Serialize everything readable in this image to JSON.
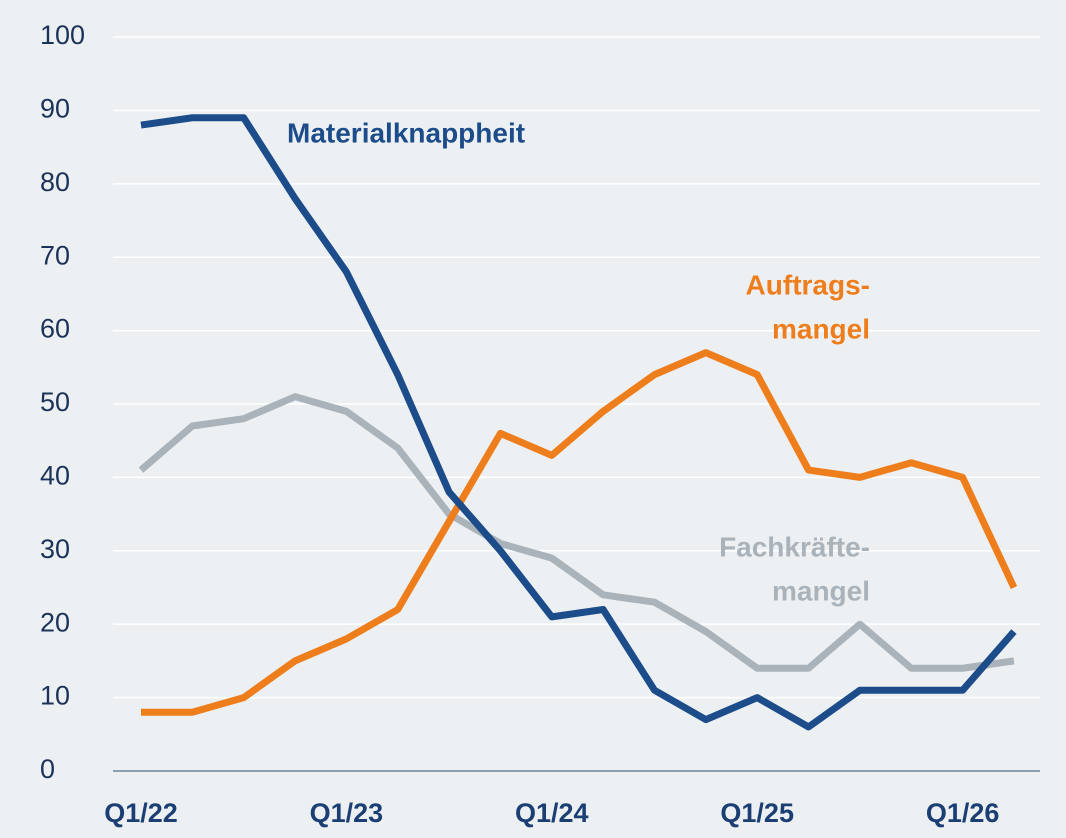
{
  "chart_data": {
    "type": "line",
    "categories": [
      "Q1/22",
      null,
      null,
      null,
      "Q1/23",
      null,
      null,
      null,
      "Q1/24",
      null,
      null,
      null,
      "Q1/25",
      null,
      null,
      null,
      "Q1/26",
      null
    ],
    "series": [
      {
        "name": [
          "Materialknappheit"
        ],
        "color": "#1d4c8a",
        "values": [
          88,
          89,
          89,
          78,
          68,
          54,
          38,
          30,
          21,
          22,
          11,
          7,
          10,
          6,
          11,
          11,
          11,
          19
        ]
      },
      {
        "name": [
          "Auftrags-",
          "mangel"
        ],
        "color": "#ee7d1c",
        "values": [
          8,
          8,
          10,
          15,
          18,
          22,
          34,
          46,
          43,
          49,
          54,
          57,
          54,
          41,
          40,
          42,
          40,
          25
        ]
      },
      {
        "name": [
          "Fachkräfte-",
          "mangel"
        ],
        "color": "#aab3ba",
        "values": [
          41,
          47,
          48,
          51,
          49,
          44,
          35,
          31,
          29,
          24,
          23,
          19,
          14,
          14,
          20,
          14,
          14,
          15
        ]
      }
    ],
    "ylim": [
      0,
      100
    ],
    "yticks": [
      0,
      10,
      20,
      30,
      40,
      50,
      60,
      70,
      80,
      90,
      100
    ],
    "grid": true
  }
}
